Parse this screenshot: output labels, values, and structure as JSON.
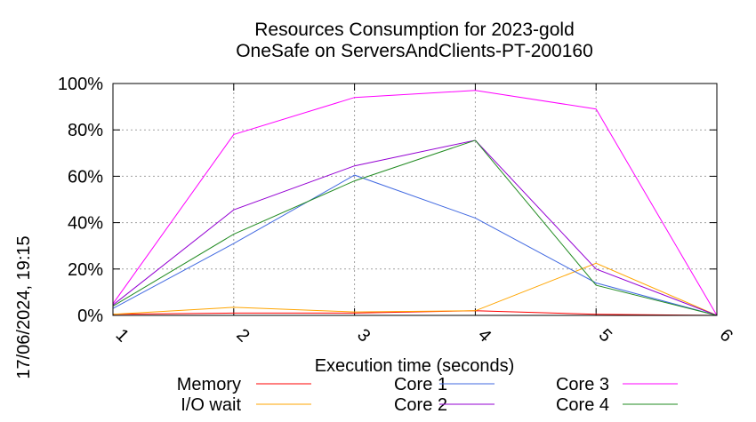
{
  "chart_data": {
    "type": "line",
    "title": "Resources Consumption for 2023-gold",
    "subtitle": "OneSafe on ServersAndClients-PT-200160",
    "xlabel": "Execution time (seconds)",
    "ylabel": "",
    "side_label": "17/06/2024, 19:15",
    "x": [
      1,
      2,
      3,
      4,
      5,
      6
    ],
    "xlim": [
      1,
      6
    ],
    "ylim": [
      0,
      100
    ],
    "x_ticks": [
      "1",
      "2",
      "3",
      "4",
      "5",
      "6"
    ],
    "y_ticks": [
      "0%",
      "20%",
      "40%",
      "60%",
      "80%",
      "100%"
    ],
    "y_tick_values": [
      0,
      20,
      40,
      60,
      80,
      100
    ],
    "grid": true,
    "legend_position": "bottom",
    "series": [
      {
        "name": "Memory",
        "color": "#ff0000",
        "values": [
          0.5,
          1,
          1,
          2,
          0.5,
          0
        ]
      },
      {
        "name": "I/O wait",
        "color": "#ffa500",
        "values": [
          0.5,
          3.5,
          1.5,
          2,
          22.5,
          0
        ]
      },
      {
        "name": "Core 1",
        "color": "#4169e1",
        "values": [
          3,
          31,
          60.5,
          42,
          14,
          0
        ]
      },
      {
        "name": "Core 2",
        "color": "#9400d3",
        "values": [
          4.5,
          45.5,
          64.5,
          75.5,
          20,
          0
        ]
      },
      {
        "name": "Core 3",
        "color": "#ff00ff",
        "values": [
          5,
          78,
          94,
          97,
          89,
          0
        ]
      },
      {
        "name": "Core 4",
        "color": "#228b22",
        "values": [
          4,
          35,
          58,
          75.5,
          13,
          0
        ]
      }
    ]
  }
}
